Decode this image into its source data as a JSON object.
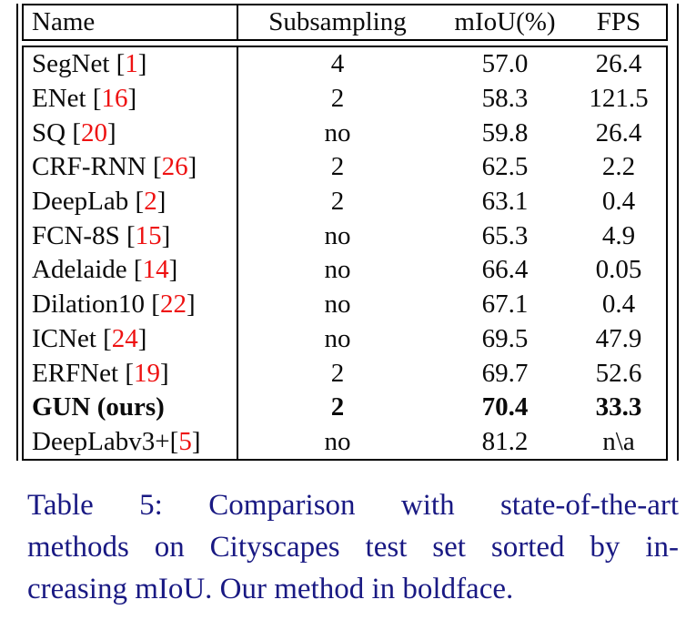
{
  "table": {
    "headers": [
      "Name",
      "Subsampling",
      "mIoU(%)",
      "FPS"
    ],
    "bracket_open": "[",
    "bracket_close": "]",
    "rows": [
      {
        "name": "SegNet ",
        "cite": "1",
        "subsampling": "4",
        "miou": "57.0",
        "fps": "26.4",
        "bold": false
      },
      {
        "name": "ENet ",
        "cite": "16",
        "subsampling": "2",
        "miou": "58.3",
        "fps": "121.5",
        "bold": false
      },
      {
        "name": "SQ ",
        "cite": "20",
        "subsampling": "no",
        "miou": "59.8",
        "fps": "26.4",
        "bold": false
      },
      {
        "name": "CRF-RNN ",
        "cite": "26",
        "subsampling": "2",
        "miou": "62.5",
        "fps": "2.2",
        "bold": false
      },
      {
        "name": "DeepLab ",
        "cite": "2",
        "subsampling": "2",
        "miou": "63.1",
        "fps": "0.4",
        "bold": false
      },
      {
        "name": "FCN-8S ",
        "cite": "15",
        "subsampling": "no",
        "miou": "65.3",
        "fps": "4.9",
        "bold": false
      },
      {
        "name": "Adelaide ",
        "cite": "14",
        "subsampling": "no",
        "miou": "66.4",
        "fps": "0.05",
        "bold": false
      },
      {
        "name": "Dilation10 ",
        "cite": "22",
        "subsampling": "no",
        "miou": "67.1",
        "fps": "0.4",
        "bold": false
      },
      {
        "name": "ICNet ",
        "cite": "24",
        "subsampling": "no",
        "miou": "69.5",
        "fps": "47.9",
        "bold": false
      },
      {
        "name": "ERFNet ",
        "cite": "19",
        "subsampling": "2",
        "miou": "69.7",
        "fps": "52.6",
        "bold": false
      },
      {
        "name": "GUN (ours)",
        "cite": null,
        "subsampling": "2",
        "miou": "70.4",
        "fps": "33.3",
        "bold": true
      },
      {
        "name": "DeepLabv3+",
        "cite": "5",
        "subsampling": "no",
        "miou": "81.2",
        "fps": "n\\a",
        "bold": false
      }
    ]
  },
  "caption": {
    "lines": [
      "Table 5:  Comparison with state-of-the-art",
      "methods on Cityscapes test set sorted by in-",
      "creasing mIoU. Our method in boldface."
    ]
  },
  "colors": {
    "citation_red": "#ee1111",
    "caption_navy": "#191983",
    "rule_black": "#000000"
  }
}
